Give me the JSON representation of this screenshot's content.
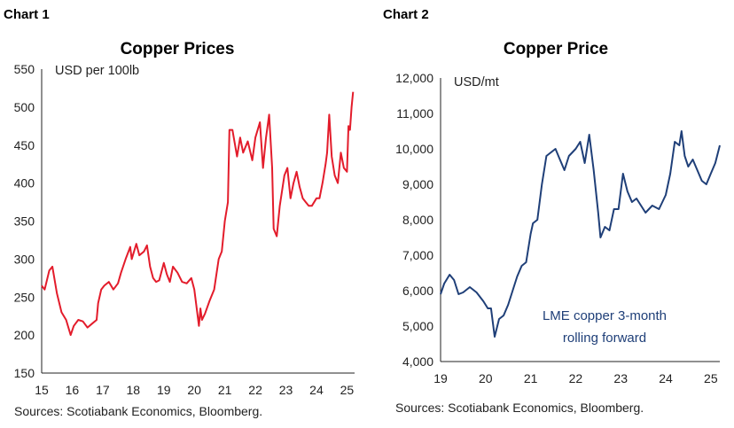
{
  "charts": [
    {
      "heading": "Chart 1",
      "title": "Copper Prices",
      "unit": "USD per 100lb",
      "source": "Sources: Scotiabank Economics, Bloomberg.",
      "line_color": "#e31c2b",
      "ylim": [
        150,
        550
      ],
      "yticks": [
        "550",
        "500",
        "450",
        "400",
        "350",
        "300",
        "250",
        "200",
        "150"
      ],
      "xticks": [
        "15",
        "16",
        "17",
        "18",
        "19",
        "20",
        "21",
        "22",
        "23",
        "24",
        "25"
      ]
    },
    {
      "heading": "Chart 2",
      "title": "Copper Price",
      "unit": "USD/mt",
      "annotation": [
        "LME copper 3-month",
        "rolling forward"
      ],
      "source": "Sources: Scotiabank Economics, Bloomberg.",
      "line_color": "#1f3f78",
      "ylim": [
        4000,
        12000
      ],
      "yticks": [
        "12,000",
        "11,000",
        "10,000",
        "9,000",
        "8,000",
        "7,000",
        "6,000",
        "5,000",
        "4,000"
      ],
      "xticks": [
        "19",
        "20",
        "21",
        "22",
        "23",
        "24",
        "25"
      ]
    }
  ],
  "chart_data": [
    {
      "type": "line",
      "title": "Copper Prices",
      "ylabel": "USD per 100lb",
      "ylim": [
        150,
        550
      ],
      "xlim": [
        15.0,
        25.25
      ],
      "grid": false,
      "series": [
        {
          "x": [
            15.0,
            15.1,
            15.25,
            15.35,
            15.5,
            15.65,
            15.8,
            15.95,
            16.05,
            16.2,
            16.35,
            16.5,
            16.65,
            16.8,
            16.85,
            16.95,
            17.05,
            17.2,
            17.35,
            17.5,
            17.6,
            17.75,
            17.9,
            17.95,
            18.1,
            18.2,
            18.35,
            18.45,
            18.55,
            18.65,
            18.75,
            18.85,
            19.0,
            19.1,
            19.2,
            19.3,
            19.45,
            19.6,
            19.75,
            19.9,
            20.0,
            20.15,
            20.2,
            20.25,
            20.35,
            20.5,
            20.65,
            20.8,
            20.9,
            21.0,
            21.1,
            21.15,
            21.25,
            21.4,
            21.5,
            21.6,
            21.75,
            21.9,
            22.0,
            22.15,
            22.25,
            22.35,
            22.45,
            22.55,
            22.6,
            22.7,
            22.8,
            22.95,
            23.05,
            23.15,
            23.25,
            23.35,
            23.45,
            23.55,
            23.65,
            23.75,
            23.85,
            24.0,
            24.1,
            24.2,
            24.3,
            24.35,
            24.42,
            24.5,
            24.6,
            24.7,
            24.8,
            24.9,
            25.0,
            25.05,
            25.1,
            25.15,
            25.2
          ],
          "y": [
            265,
            260,
            285,
            290,
            255,
            230,
            220,
            200,
            212,
            220,
            218,
            210,
            215,
            220,
            242,
            260,
            265,
            270,
            260,
            268,
            282,
            300,
            316,
            300,
            320,
            305,
            310,
            318,
            290,
            275,
            270,
            272,
            295,
            280,
            270,
            290,
            282,
            270,
            268,
            275,
            260,
            212,
            235,
            220,
            228,
            245,
            260,
            300,
            310,
            350,
            375,
            470,
            470,
            435,
            460,
            440,
            455,
            430,
            460,
            480,
            420,
            460,
            490,
            420,
            340,
            330,
            370,
            410,
            420,
            380,
            400,
            415,
            395,
            380,
            375,
            370,
            370,
            380,
            380,
            400,
            425,
            440,
            490,
            435,
            410,
            400,
            440,
            420,
            415,
            475,
            470,
            500,
            520
          ]
        }
      ]
    },
    {
      "type": "line",
      "title": "Copper Price",
      "ylabel": "USD/mt",
      "ylim": [
        4000,
        12000
      ],
      "xlim": [
        19.0,
        25.2
      ],
      "grid": false,
      "series": [
        {
          "x": [
            19.0,
            19.08,
            19.2,
            19.3,
            19.4,
            19.5,
            19.65,
            19.8,
            19.95,
            20.05,
            20.12,
            20.2,
            20.3,
            20.4,
            20.5,
            20.6,
            20.7,
            20.8,
            20.9,
            21.0,
            21.05,
            21.15,
            21.25,
            21.35,
            21.45,
            21.55,
            21.65,
            21.75,
            21.85,
            22.0,
            22.1,
            22.2,
            22.3,
            22.4,
            22.5,
            22.55,
            22.65,
            22.75,
            22.85,
            22.95,
            23.05,
            23.15,
            23.25,
            23.35,
            23.45,
            23.55,
            23.7,
            23.85,
            24.0,
            24.1,
            24.2,
            24.3,
            24.35,
            24.42,
            24.5,
            24.6,
            24.7,
            24.8,
            24.9,
            25.0,
            25.1,
            25.2
          ],
          "y": [
            5900,
            6200,
            6450,
            6300,
            5900,
            5950,
            6100,
            5950,
            5700,
            5500,
            5500,
            4700,
            5200,
            5300,
            5600,
            6000,
            6400,
            6700,
            6800,
            7600,
            7900,
            8000,
            9000,
            9800,
            9900,
            10000,
            9700,
            9400,
            9800,
            10000,
            10200,
            9600,
            10400,
            9400,
            8200,
            7500,
            7800,
            7700,
            8300,
            8300,
            9300,
            8800,
            8500,
            8600,
            8400,
            8200,
            8400,
            8300,
            8700,
            9300,
            10200,
            10100,
            10500,
            9800,
            9500,
            9700,
            9400,
            9100,
            9000,
            9300,
            9600,
            10100
          ]
        }
      ]
    }
  ]
}
